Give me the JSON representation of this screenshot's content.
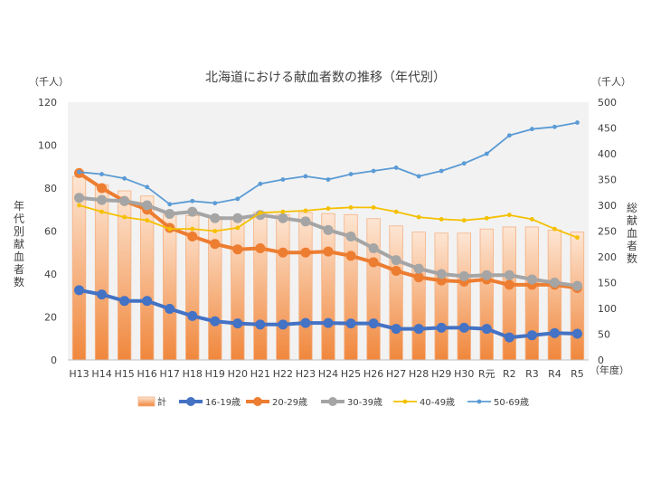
{
  "chart_data": {
    "type": "bar",
    "title": "北海道における献血者数の推移（年代別）",
    "left_unit": "（千人）",
    "right_unit": "（千人）",
    "x_unit": "（年度）",
    "left_axis_label": "年代別献血者数",
    "right_axis_label": "総献血者数",
    "categories": [
      "H13",
      "H14",
      "H15",
      "H16",
      "H17",
      "H18",
      "H19",
      "H20",
      "H21",
      "H22",
      "H23",
      "H24",
      "H25",
      "H26",
      "H27",
      "H28",
      "H29",
      "H30",
      "R元",
      "R2",
      "R3",
      "R4",
      "R5"
    ],
    "left_ylim": [
      0,
      120
    ],
    "left_yticks": [
      "0",
      "20",
      "40",
      "60",
      "80",
      "100",
      "120"
    ],
    "right_ylim": [
      0,
      500
    ],
    "right_yticks": [
      "0",
      "50",
      "100",
      "150",
      "200",
      "250",
      "300",
      "350",
      "400",
      "450",
      "500"
    ],
    "grid": false,
    "legend_position": "bottom",
    "total_series": {
      "name": "計",
      "axis": "right",
      "color": "#f5a86e",
      "values": [
        356,
        340,
        328,
        318,
        282,
        280,
        278,
        276,
        286,
        282,
        286,
        284,
        282,
        274,
        260,
        248,
        246,
        246,
        254,
        258,
        258,
        252,
        248
      ]
    },
    "series": [
      {
        "name": "16-19歳",
        "axis": "left",
        "color": "#4472c4",
        "marker": "large",
        "values": [
          32.5,
          30.5,
          27.5,
          27.5,
          23.8,
          20.5,
          18.0,
          17.0,
          16.5,
          16.5,
          17.2,
          17.2,
          17.0,
          17.0,
          14.5,
          14.5,
          15.0,
          15.0,
          14.5,
          10.5,
          11.5,
          12.5,
          12.2
        ]
      },
      {
        "name": "20-29歳",
        "axis": "left",
        "color": "#ed7d31",
        "marker": "large",
        "values": [
          87.0,
          80.0,
          74.0,
          70.0,
          61.5,
          57.5,
          54.0,
          51.5,
          52.0,
          50.0,
          50.0,
          50.5,
          48.5,
          45.5,
          41.5,
          38.5,
          37.0,
          36.5,
          37.5,
          35.0,
          35.0,
          35.0,
          33.5
        ]
      },
      {
        "name": "30-39歳",
        "axis": "left",
        "color": "#a5a5a5",
        "marker": "large",
        "values": [
          75.5,
          74.5,
          74.0,
          72.0,
          68.0,
          69.0,
          66.0,
          66.0,
          67.5,
          66.0,
          64.5,
          60.5,
          57.5,
          52.0,
          46.5,
          42.5,
          40.0,
          39.0,
          39.5,
          39.5,
          37.5,
          36.0,
          34.5
        ]
      },
      {
        "name": "40-49歳",
        "axis": "left",
        "color": "#f5c000",
        "marker": "small",
        "values": [
          72.0,
          69.0,
          66.5,
          65.0,
          61.0,
          61.0,
          60.0,
          61.5,
          68.5,
          69.0,
          69.5,
          70.5,
          71.0,
          71.0,
          69.0,
          66.5,
          65.5,
          65.0,
          66.0,
          67.5,
          65.5,
          61.0,
          57.0
        ]
      },
      {
        "name": "50-69歳",
        "axis": "left",
        "color": "#5b9bd5",
        "marker": "small",
        "values": [
          87.5,
          86.5,
          84.5,
          80.5,
          72.5,
          74.0,
          73.0,
          75.0,
          82.0,
          84.0,
          85.5,
          84.0,
          86.5,
          88.0,
          89.5,
          85.5,
          88.0,
          91.5,
          96.0,
          104.5,
          107.5,
          108.5,
          110.5
        ]
      }
    ]
  }
}
